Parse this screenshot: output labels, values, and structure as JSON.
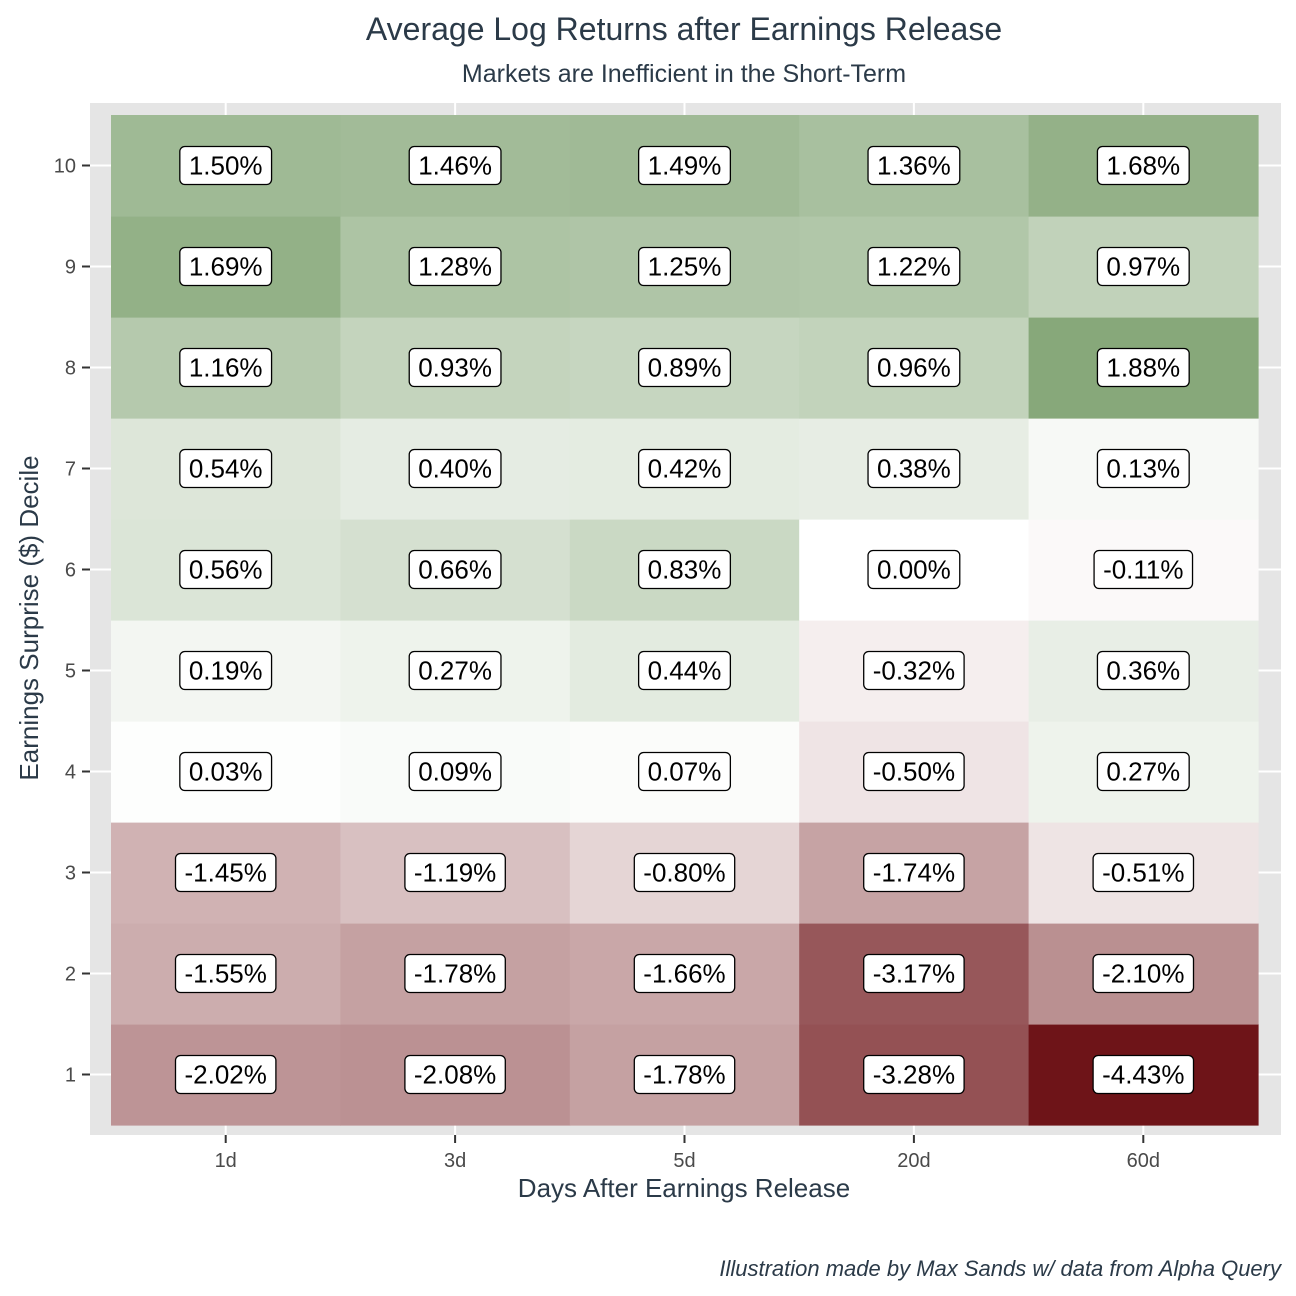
{
  "chart_data": {
    "type": "heatmap",
    "title": "Average Log Returns after Earnings Release",
    "subtitle": "Markets are Inefficient in the Short-Term",
    "xlabel": "Days After Earnings Release",
    "ylabel": "Earnings Surprise ($) Decile",
    "caption": "Illustration made by Max Sands w/ data from Alpha Query",
    "x_categories": [
      "1d",
      "3d",
      "5d",
      "20d",
      "60d"
    ],
    "y_categories": [
      "1",
      "2",
      "3",
      "4",
      "5",
      "6",
      "7",
      "8",
      "9",
      "10"
    ],
    "value_unit": "%",
    "values": [
      [
        -2.02,
        -2.08,
        -1.78,
        -3.28,
        -4.43
      ],
      [
        -1.55,
        -1.78,
        -1.66,
        -3.17,
        -2.1
      ],
      [
        -1.45,
        -1.19,
        -0.8,
        -1.74,
        -0.51
      ],
      [
        0.03,
        0.09,
        0.07,
        -0.5,
        0.27
      ],
      [
        0.19,
        0.27,
        0.44,
        -0.32,
        0.36
      ],
      [
        0.56,
        0.66,
        0.83,
        0.0,
        -0.11
      ],
      [
        0.54,
        0.4,
        0.42,
        0.38,
        0.13
      ],
      [
        1.16,
        0.93,
        0.89,
        0.96,
        1.88
      ],
      [
        1.69,
        1.28,
        1.25,
        1.22,
        0.97
      ],
      [
        1.5,
        1.46,
        1.49,
        1.36,
        1.68
      ]
    ],
    "labels": [
      [
        "-2.02%",
        "-2.08%",
        "-1.78%",
        "-3.28%",
        "-4.43%"
      ],
      [
        "-1.55%",
        "-1.78%",
        "-1.66%",
        "-3.17%",
        "-2.10%"
      ],
      [
        "-1.45%",
        "-1.19%",
        "-0.80%",
        "-1.74%",
        "-0.51%"
      ],
      [
        "0.03%",
        "0.09%",
        "0.07%",
        "-0.50%",
        "0.27%"
      ],
      [
        "0.19%",
        "0.27%",
        "0.44%",
        "-0.32%",
        "0.36%"
      ],
      [
        "0.56%",
        "0.66%",
        "0.83%",
        "0.00%",
        "-0.11%"
      ],
      [
        "0.54%",
        "0.40%",
        "0.42%",
        "0.38%",
        "0.13%"
      ],
      [
        "1.16%",
        "0.93%",
        "0.89%",
        "0.96%",
        "1.88%"
      ],
      [
        "1.69%",
        "1.28%",
        "1.25%",
        "1.22%",
        "0.97%"
      ],
      [
        "1.50%",
        "1.46%",
        "1.49%",
        "1.36%",
        "1.68%"
      ]
    ],
    "color_scale": {
      "low": "#6e1418",
      "mid": "#ffffff",
      "high": "#87a87a",
      "low_value": -4.43,
      "mid_value": 0,
      "high_value": 1.88
    },
    "panel_background": "#e5e5e5",
    "grid": true,
    "legend": "none"
  }
}
